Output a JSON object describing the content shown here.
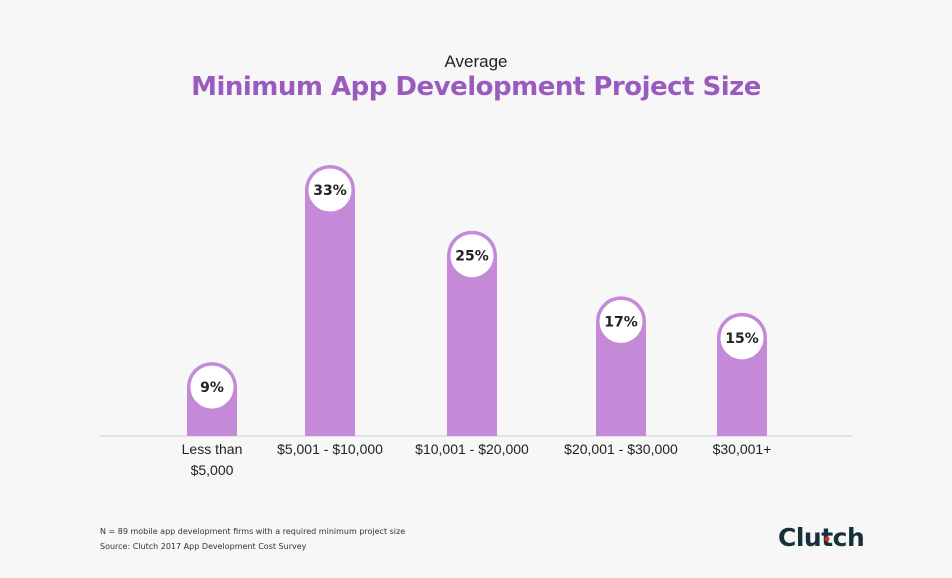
{
  "chart_data": {
    "type": "bar",
    "supertitle": "Average",
    "title": "Minimum App Development Project Size",
    "categories": [
      [
        "Less than",
        "$5,000"
      ],
      [
        "$5,001 - $10,000"
      ],
      [
        "$10,001 - $20,000"
      ],
      [
        "$20,001 - $30,000"
      ],
      [
        "$30,001+"
      ]
    ],
    "values": [
      9,
      33,
      25,
      17,
      15
    ],
    "value_labels": [
      "9%",
      "33%",
      "25%",
      "17%",
      "15%"
    ],
    "ylim": [
      0,
      33
    ],
    "grid": false,
    "bar_color": "#c48ad8",
    "badge_border_color": "#c48ad8"
  },
  "footnotes": {
    "sample": "N = 89 mobile app development firms with a required minimum project size",
    "source": "Source: Clutch 2017 App Development Cost Survey"
  },
  "logo": {
    "text_before": "Clu",
    "text_t": "t",
    "text_after": "ch",
    "accent": "#e62415"
  },
  "colors": {
    "title": "#9a5bbf",
    "axis": "#cccccc"
  }
}
